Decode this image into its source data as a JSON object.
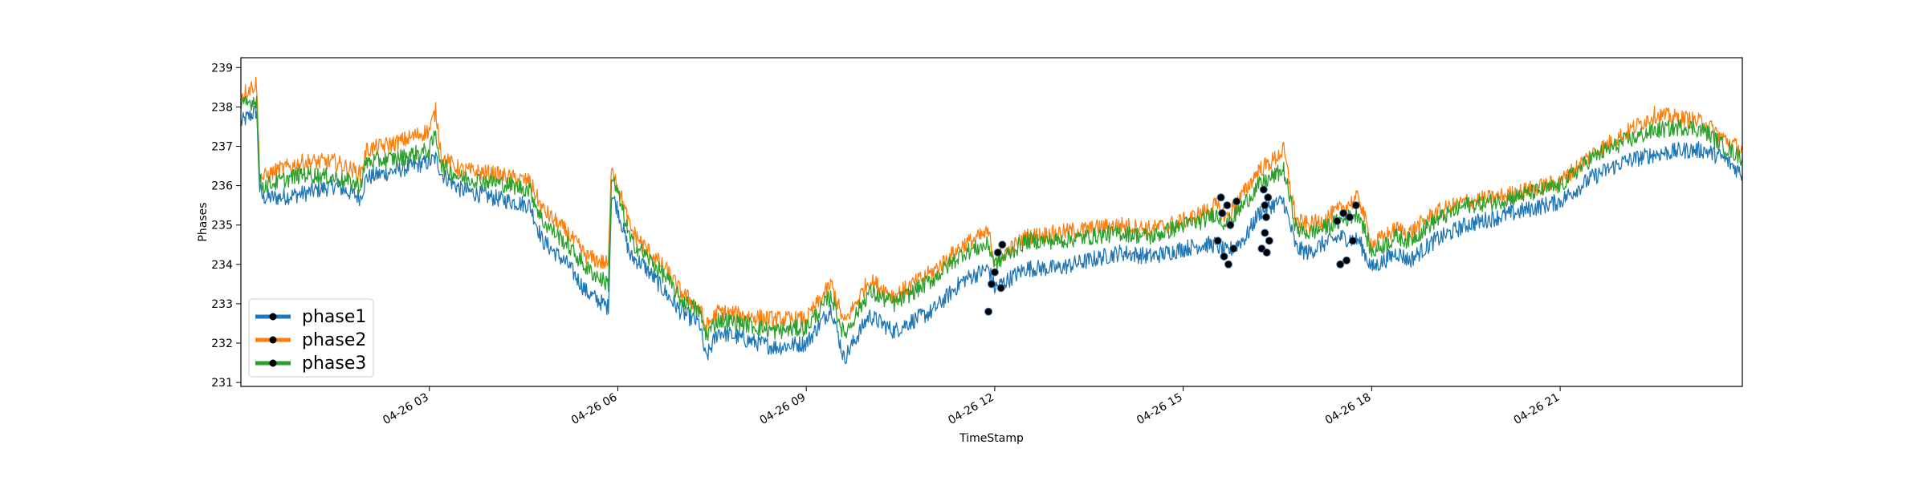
{
  "chart_data": {
    "type": "line",
    "xlabel": "TimeStamp",
    "ylabel": "Phases",
    "xlim": [
      0.0,
      23.9
    ],
    "ylim": [
      230.9,
      239.25
    ],
    "x_ticks": [
      {
        "value": 3,
        "label": "04-26 03"
      },
      {
        "value": 6,
        "label": "04-26 06"
      },
      {
        "value": 9,
        "label": "04-26 09"
      },
      {
        "value": 12,
        "label": "04-26 12"
      },
      {
        "value": 15,
        "label": "04-26 15"
      },
      {
        "value": 18,
        "label": "04-26 18"
      },
      {
        "value": 21,
        "label": "04-26 21"
      }
    ],
    "y_ticks": [
      231,
      232,
      233,
      234,
      235,
      236,
      237,
      238,
      239
    ],
    "grid": false,
    "legend_position": "lower-left",
    "series": [
      {
        "name": "phase1",
        "color": "#1f77b4",
        "x": [
          0.0,
          0.25,
          0.3,
          0.35,
          0.6,
          1.0,
          1.5,
          1.9,
          2.0,
          2.5,
          3.0,
          3.1,
          3.2,
          3.5,
          4.0,
          4.6,
          4.8,
          5.2,
          5.5,
          5.85,
          5.9,
          6.0,
          6.2,
          6.4,
          6.8,
          7.0,
          7.3,
          7.4,
          7.6,
          8.0,
          8.5,
          9.0,
          9.4,
          9.6,
          10.0,
          10.4,
          10.6,
          11.0,
          11.5,
          11.9,
          12.0,
          12.5,
          13.0,
          13.5,
          14.0,
          14.5,
          15.0,
          15.3,
          15.5,
          15.7,
          16.0,
          16.2,
          16.4,
          16.6,
          16.8,
          17.0,
          17.2,
          17.5,
          17.8,
          18.0,
          18.4,
          18.6,
          19.0,
          19.5,
          20.0,
          20.5,
          21.0,
          21.5,
          22.0,
          22.5,
          23.0,
          23.3,
          23.6,
          23.9
        ],
        "y": [
          237.6,
          237.9,
          235.9,
          235.7,
          235.7,
          235.8,
          236.0,
          235.7,
          236.2,
          236.4,
          236.6,
          236.7,
          236.3,
          235.9,
          235.7,
          235.5,
          234.6,
          234.0,
          233.3,
          232.9,
          235.8,
          235.4,
          234.2,
          234.0,
          233.2,
          232.8,
          232.5,
          231.6,
          232.3,
          232.1,
          231.9,
          232.0,
          232.9,
          231.6,
          232.7,
          232.3,
          232.5,
          232.8,
          233.6,
          233.9,
          233.4,
          233.9,
          233.9,
          234.1,
          234.3,
          234.2,
          234.4,
          234.5,
          234.5,
          234.3,
          234.7,
          235.3,
          235.5,
          235.6,
          234.4,
          234.3,
          234.5,
          234.7,
          234.6,
          233.9,
          234.3,
          234.1,
          234.6,
          235.0,
          235.2,
          235.4,
          235.6,
          236.2,
          236.6,
          236.8,
          236.9,
          236.9,
          236.7,
          236.3
        ]
      },
      {
        "name": "phase2",
        "color": "#ff7f0e",
        "x": [
          0.0,
          0.25,
          0.3,
          0.35,
          0.6,
          1.0,
          1.5,
          1.9,
          2.0,
          2.5,
          3.0,
          3.1,
          3.2,
          3.5,
          4.0,
          4.6,
          4.8,
          5.2,
          5.5,
          5.85,
          5.9,
          6.0,
          6.2,
          6.4,
          6.8,
          7.0,
          7.3,
          7.4,
          7.6,
          8.0,
          8.5,
          9.0,
          9.4,
          9.6,
          10.0,
          10.4,
          10.6,
          11.0,
          11.5,
          11.9,
          12.0,
          12.5,
          13.0,
          13.5,
          14.0,
          14.5,
          15.0,
          15.3,
          15.5,
          15.7,
          16.0,
          16.2,
          16.4,
          16.6,
          16.8,
          17.0,
          17.2,
          17.5,
          17.8,
          18.0,
          18.4,
          18.6,
          19.0,
          19.5,
          20.0,
          20.5,
          21.0,
          21.5,
          22.0,
          22.5,
          23.0,
          23.3,
          23.6,
          23.9
        ],
        "y": [
          238.3,
          238.6,
          236.3,
          236.2,
          236.4,
          236.6,
          236.6,
          236.3,
          236.9,
          237.1,
          237.4,
          237.9,
          236.7,
          236.4,
          236.3,
          236.1,
          235.4,
          234.8,
          234.2,
          234.0,
          236.6,
          236.0,
          234.9,
          234.5,
          233.8,
          233.3,
          232.9,
          232.4,
          232.8,
          232.7,
          232.6,
          232.6,
          233.5,
          232.5,
          233.6,
          233.2,
          233.4,
          233.8,
          234.5,
          234.8,
          234.1,
          234.7,
          234.8,
          234.9,
          235.0,
          234.9,
          235.1,
          235.3,
          235.5,
          235.2,
          235.9,
          236.4,
          236.6,
          236.9,
          235.1,
          235.0,
          235.1,
          235.4,
          235.7,
          234.5,
          234.9,
          234.8,
          235.3,
          235.6,
          235.7,
          235.9,
          236.1,
          236.8,
          237.3,
          237.8,
          237.7,
          237.6,
          237.2,
          236.9
        ]
      },
      {
        "name": "phase3",
        "color": "#2ca02c",
        "x": [
          0.0,
          0.25,
          0.3,
          0.35,
          0.6,
          1.0,
          1.5,
          1.9,
          2.0,
          2.5,
          3.0,
          3.1,
          3.2,
          3.5,
          4.0,
          4.6,
          4.8,
          5.2,
          5.5,
          5.85,
          5.9,
          6.0,
          6.2,
          6.4,
          6.8,
          7.0,
          7.3,
          7.4,
          7.6,
          8.0,
          8.5,
          9.0,
          9.4,
          9.6,
          10.0,
          10.4,
          10.6,
          11.0,
          11.5,
          11.9,
          12.0,
          12.5,
          13.0,
          13.5,
          14.0,
          14.5,
          15.0,
          15.3,
          15.5,
          15.7,
          16.0,
          16.2,
          16.4,
          16.6,
          16.8,
          17.0,
          17.2,
          17.5,
          17.8,
          18.0,
          18.4,
          18.6,
          19.0,
          19.5,
          20.0,
          20.5,
          21.0,
          21.5,
          22.0,
          22.5,
          23.0,
          23.3,
          23.6,
          23.9
        ],
        "y": [
          238.0,
          238.2,
          236.1,
          236.0,
          236.1,
          236.3,
          236.2,
          236.0,
          236.6,
          236.7,
          236.9,
          237.3,
          236.5,
          236.2,
          236.1,
          235.9,
          235.1,
          234.5,
          233.9,
          233.5,
          236.2,
          235.8,
          234.6,
          234.3,
          233.6,
          233.1,
          232.8,
          232.2,
          232.6,
          232.5,
          232.3,
          232.4,
          233.2,
          232.2,
          233.3,
          233.0,
          233.2,
          233.6,
          234.3,
          234.5,
          234.0,
          234.6,
          234.6,
          234.7,
          234.8,
          234.7,
          235.0,
          235.1,
          235.3,
          235.0,
          235.6,
          236.0,
          236.2,
          236.4,
          234.9,
          234.8,
          234.9,
          235.1,
          235.3,
          234.3,
          234.7,
          234.6,
          235.1,
          235.5,
          235.6,
          235.8,
          236.0,
          236.7,
          237.1,
          237.4,
          237.5,
          237.4,
          237.0,
          236.7
        ]
      }
    ],
    "markers": [
      {
        "x": 11.9,
        "y": 232.8
      },
      {
        "x": 11.95,
        "y": 233.5
      },
      {
        "x": 12.0,
        "y": 233.8
      },
      {
        "x": 12.05,
        "y": 234.3
      },
      {
        "x": 12.1,
        "y": 233.4
      },
      {
        "x": 12.12,
        "y": 234.5
      },
      {
        "x": 15.55,
        "y": 234.6
      },
      {
        "x": 15.6,
        "y": 235.7
      },
      {
        "x": 15.62,
        "y": 235.3
      },
      {
        "x": 15.65,
        "y": 234.2
      },
      {
        "x": 15.7,
        "y": 235.5
      },
      {
        "x": 15.72,
        "y": 234.0
      },
      {
        "x": 15.75,
        "y": 235.0
      },
      {
        "x": 15.8,
        "y": 234.4
      },
      {
        "x": 15.85,
        "y": 235.6
      },
      {
        "x": 16.25,
        "y": 234.4
      },
      {
        "x": 16.28,
        "y": 235.9
      },
      {
        "x": 16.3,
        "y": 235.5
      },
      {
        "x": 16.3,
        "y": 234.8
      },
      {
        "x": 16.32,
        "y": 235.2
      },
      {
        "x": 16.33,
        "y": 234.3
      },
      {
        "x": 16.35,
        "y": 235.7
      },
      {
        "x": 16.37,
        "y": 234.6
      },
      {
        "x": 17.45,
        "y": 235.1
      },
      {
        "x": 17.5,
        "y": 234.0
      },
      {
        "x": 17.55,
        "y": 235.3
      },
      {
        "x": 17.6,
        "y": 234.1
      },
      {
        "x": 17.65,
        "y": 235.2
      },
      {
        "x": 17.7,
        "y": 234.6
      },
      {
        "x": 17.75,
        "y": 235.5
      }
    ]
  },
  "legend": {
    "items": [
      {
        "label": "phase1",
        "color": "#1f77b4"
      },
      {
        "label": "phase2",
        "color": "#ff7f0e"
      },
      {
        "label": "phase3",
        "color": "#2ca02c"
      }
    ]
  }
}
